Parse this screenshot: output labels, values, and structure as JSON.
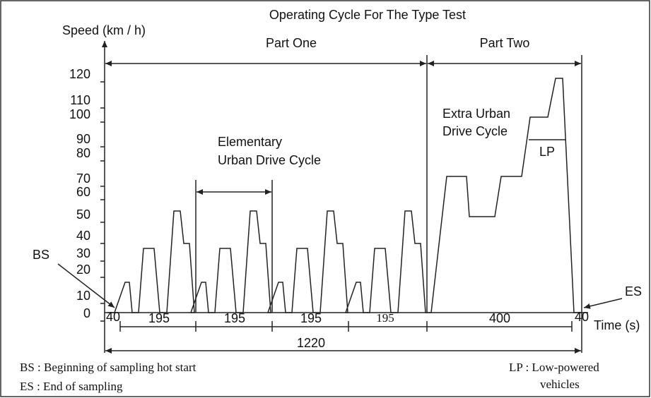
{
  "title": "Operating Cycle For The Type Test",
  "y_axis_label": "Speed (km / h)",
  "x_axis_label": "Time (s)",
  "y_labels": [
    120,
    110,
    100,
    90,
    80,
    70,
    60,
    50,
    40,
    30,
    20,
    10,
    0
  ],
  "parts": [
    "Part One",
    "Part Two"
  ],
  "elementary_label": [
    "Elementary",
    "Urban Drive Cycle"
  ],
  "extra_urban_label": [
    "Extra Urban",
    "Drive Cycle"
  ],
  "lp_label": "LP",
  "bs_label": "BS",
  "es_label": "ES",
  "durations": [
    40,
    195,
    195,
    195,
    195,
    400,
    40
  ],
  "total": 1220,
  "notes_left": [
    "BS : Beginning of sampling  hot start",
    "ES : End of sampling"
  ],
  "notes_right": [
    "LP : Low-powered",
    "vehicles"
  ]
}
